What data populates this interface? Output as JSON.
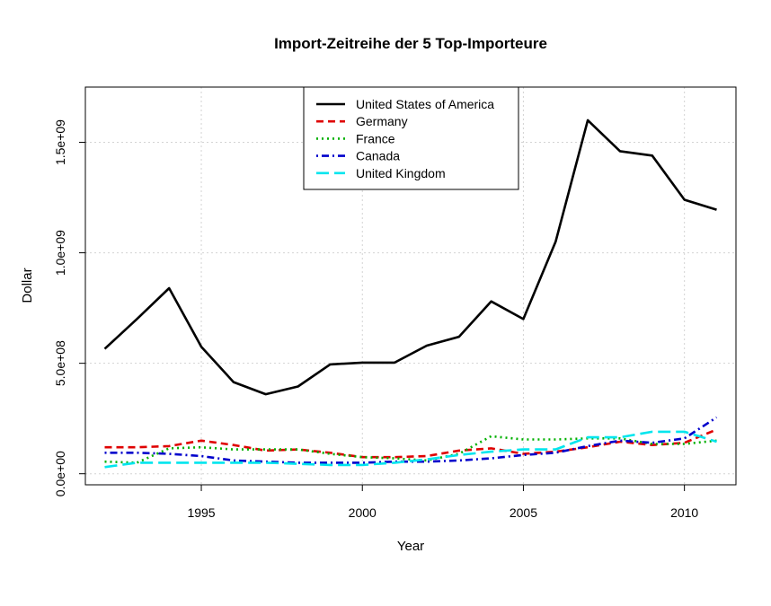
{
  "chart_data": {
    "type": "line",
    "title": "Import-Zeitreihe der 5 Top-Importeure",
    "xlabel": "Year",
    "ylabel": "Dollar",
    "xlim": [
      1991.4,
      2011.6
    ],
    "ylim": [
      -50000000,
      1750000000
    ],
    "x_ticks": [
      1995,
      2000,
      2005,
      2010
    ],
    "x_tick_labels": [
      "1995",
      "2000",
      "2005",
      "2010"
    ],
    "y_ticks": [
      0,
      500000000,
      1000000000,
      1500000000
    ],
    "y_tick_labels": [
      "0.0e+00",
      "5.0e+08",
      "1.0e+09",
      "1.5e+09"
    ],
    "grid": true,
    "legend_position": "top-center",
    "x": [
      1992,
      1993,
      1994,
      1995,
      1996,
      1997,
      1998,
      1999,
      2000,
      2001,
      2002,
      2003,
      2004,
      2005,
      2006,
      2007,
      2008,
      2009,
      2010,
      2011
    ],
    "series": [
      {
        "name": "United States of America",
        "color": "#000000",
        "dash": "solid",
        "values": [
          565000000,
          700000000,
          840000000,
          575000000,
          415000000,
          360000000,
          395000000,
          495000000,
          503000000,
          503000000,
          580000000,
          620000000,
          780000000,
          700000000,
          1050000000,
          1600000000,
          1460000000,
          1440000000,
          1240000000,
          1195000000
        ]
      },
      {
        "name": "Germany",
        "color": "#df0000",
        "dash": "dashed",
        "values": [
          120000000,
          120000000,
          125000000,
          150000000,
          130000000,
          105000000,
          110000000,
          95000000,
          75000000,
          75000000,
          80000000,
          105000000,
          115000000,
          90000000,
          100000000,
          120000000,
          145000000,
          130000000,
          140000000,
          200000000
        ]
      },
      {
        "name": "France",
        "color": "#00b000",
        "dash": "dotted",
        "values": [
          55000000,
          50000000,
          115000000,
          120000000,
          110000000,
          110000000,
          110000000,
          90000000,
          75000000,
          70000000,
          60000000,
          90000000,
          170000000,
          155000000,
          155000000,
          160000000,
          160000000,
          135000000,
          135000000,
          150000000
        ]
      },
      {
        "name": "Canada",
        "color": "#0000cc",
        "dash": "dotdash",
        "values": [
          95000000,
          95000000,
          90000000,
          80000000,
          60000000,
          55000000,
          50000000,
          50000000,
          50000000,
          55000000,
          55000000,
          60000000,
          70000000,
          85000000,
          95000000,
          125000000,
          150000000,
          140000000,
          160000000,
          255000000
        ]
      },
      {
        "name": "United Kingdom",
        "color": "#00e5ee",
        "dash": "longdash",
        "values": [
          30000000,
          50000000,
          50000000,
          50000000,
          50000000,
          50000000,
          45000000,
          40000000,
          40000000,
          50000000,
          65000000,
          85000000,
          100000000,
          110000000,
          110000000,
          165000000,
          165000000,
          190000000,
          190000000,
          145000000
        ]
      }
    ]
  }
}
